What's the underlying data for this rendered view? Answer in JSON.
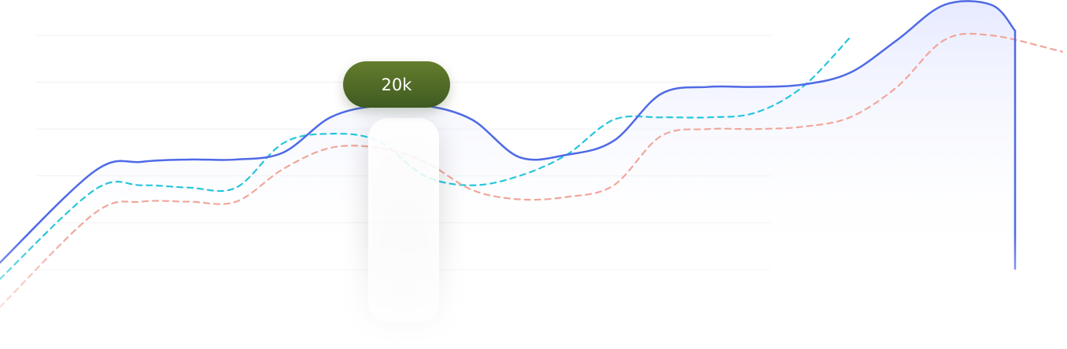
{
  "tooltip": {
    "label": "20k"
  },
  "chart_data": {
    "type": "line",
    "title": "",
    "xlabel": "",
    "ylabel": "",
    "grid": true,
    "legend": "none",
    "ylim": [
      0,
      6
    ],
    "xlim": [
      0,
      22.5
    ],
    "highlight": {
      "x": 8.3,
      "label": "20k"
    },
    "series": [
      {
        "style": "solid-area",
        "color": "#4f6ae6",
        "x": [
          0,
          2,
          3,
          4,
          5,
          6,
          7,
          8,
          9,
          10,
          11,
          12,
          13,
          14,
          15,
          16,
          17,
          18,
          19,
          20,
          21,
          21.5
        ],
        "y": [
          0.15,
          2.1,
          2.3,
          2.35,
          2.35,
          2.5,
          3.25,
          3.5,
          3.5,
          3.2,
          2.4,
          2.45,
          2.75,
          3.75,
          3.9,
          3.9,
          3.95,
          4.2,
          4.9,
          5.65,
          5.65,
          5.1
        ]
      },
      {
        "style": "dashed",
        "color": "#27c6dc",
        "x": [
          0,
          2,
          3,
          4,
          5,
          6,
          7,
          8,
          9,
          10,
          11,
          12,
          13,
          14,
          15,
          16,
          17,
          18
        ],
        "y": [
          -0.2,
          1.7,
          1.8,
          1.75,
          1.75,
          2.7,
          2.9,
          2.75,
          2.0,
          1.8,
          2.0,
          2.45,
          3.2,
          3.25,
          3.25,
          3.35,
          3.9,
          4.95
        ]
      },
      {
        "style": "dashed",
        "color": "#f1a79b",
        "x": [
          0,
          2,
          3,
          4,
          5,
          6,
          7,
          8,
          9,
          10,
          11,
          12,
          13,
          14,
          15,
          16,
          17,
          18,
          19,
          20,
          21,
          22.5
        ],
        "y": [
          -0.8,
          1.2,
          1.45,
          1.45,
          1.45,
          2.15,
          2.6,
          2.6,
          2.3,
          1.7,
          1.5,
          1.55,
          1.8,
          2.85,
          3.0,
          3.0,
          3.05,
          3.25,
          3.9,
          4.9,
          5.0,
          4.65
        ]
      }
    ]
  }
}
